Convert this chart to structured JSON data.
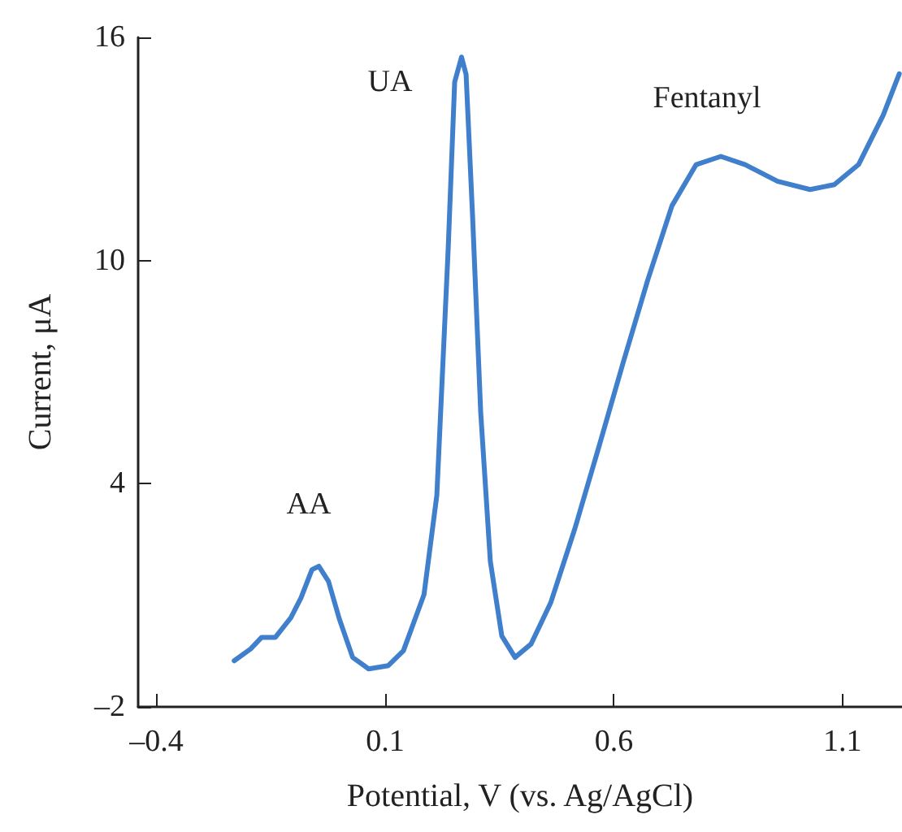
{
  "chart_data": {
    "type": "line",
    "xlabel": "Potential, V (vs. Ag/AgCl)",
    "ylabel": "Current, μA",
    "x": [
      -0.23,
      -0.194,
      -0.17,
      -0.14,
      -0.106,
      -0.084,
      -0.06,
      -0.045,
      -0.024,
      0,
      0.029,
      0.064,
      0.107,
      0.14,
      0.185,
      0.213,
      0.238,
      0.252,
      0.267,
      0.277,
      0.291,
      0.309,
      0.33,
      0.355,
      0.384,
      0.419,
      0.462,
      0.515,
      0.568,
      0.62,
      0.674,
      0.727,
      0.78,
      0.834,
      0.887,
      0.958,
      1.029,
      1.082,
      1.135,
      1.189,
      1.224
    ],
    "series": [
      {
        "color": "#3f7fcc",
        "values": [
          -0.76,
          -0.44,
          -0.13,
          -0.13,
          0.4,
          0.93,
          1.69,
          1.78,
          1.38,
          0.36,
          -0.67,
          -0.98,
          -0.89,
          -0.49,
          1.02,
          3.69,
          10.36,
          14.8,
          15.47,
          15.0,
          11.24,
          5.9,
          1.91,
          -0.09,
          -0.67,
          -0.31,
          0.8,
          2.8,
          5.02,
          7.24,
          9.47,
          11.47,
          12.58,
          12.8,
          12.58,
          12.13,
          11.91,
          12.04,
          12.58,
          13.91,
          15.02
        ]
      }
    ],
    "xlim": [
      -0.44,
      1.23
    ],
    "xticks": [
      {
        "value": -0.4,
        "label": "–0.4"
      },
      0.1,
      0.6,
      1.1
    ],
    "ylim": [
      -2,
      16
    ],
    "yticks": [
      {
        "value": -2,
        "label": "–2"
      },
      4,
      10,
      16
    ],
    "annotations": [
      "AA",
      "UA",
      "Fentanyl"
    ],
    "grid": false,
    "marker": "none",
    "line_style": "solid"
  }
}
